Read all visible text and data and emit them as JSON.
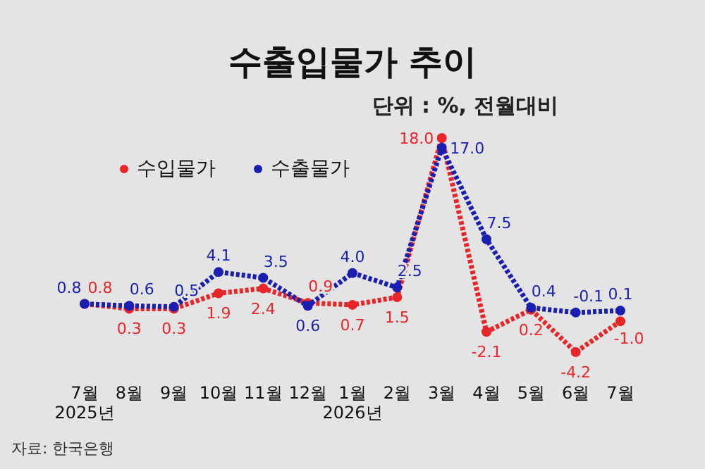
{
  "chart_data": {
    "type": "line",
    "title": "수출입물가 추이",
    "subtitle": "단위 : %, 전월대비",
    "categories": [
      "7월\n2025년",
      "8월",
      "9월",
      "10월",
      "11월",
      "12월",
      "1월\n2026년",
      "2월",
      "3월",
      "4월",
      "5월",
      "6월",
      "7월"
    ],
    "series": [
      {
        "name": "수입물가",
        "color": "#e8262a",
        "values": [
          0.8,
          0.3,
          0.3,
          1.9,
          2.4,
          0.9,
          0.7,
          1.5,
          18.0,
          -2.1,
          0.2,
          -4.2,
          -1.0
        ],
        "value_labels": [
          "0.8",
          "0.3",
          "0.3",
          "1.9",
          "2.4",
          "0.9",
          "0.7",
          "1.5",
          "18.0",
          "-2.1",
          "0.2",
          "-4.2",
          "-1.0"
        ]
      },
      {
        "name": "수출물가",
        "color": "#1a1fb0",
        "values": [
          0.8,
          0.6,
          0.5,
          4.1,
          3.5,
          0.6,
          4.0,
          2.5,
          17.0,
          7.5,
          0.4,
          -0.1,
          0.1
        ],
        "value_labels": [
          "0.8",
          "0.6",
          "0.5",
          "4.1",
          "3.5",
          "0.6",
          "4.0",
          "2.5",
          "17.0",
          "7.5",
          "0.4",
          "-0.1",
          "0.1"
        ]
      }
    ],
    "legend": "top left",
    "marker": "circle",
    "line_style": "dotted",
    "annotations": [
      "자료: 한국은행"
    ]
  }
}
